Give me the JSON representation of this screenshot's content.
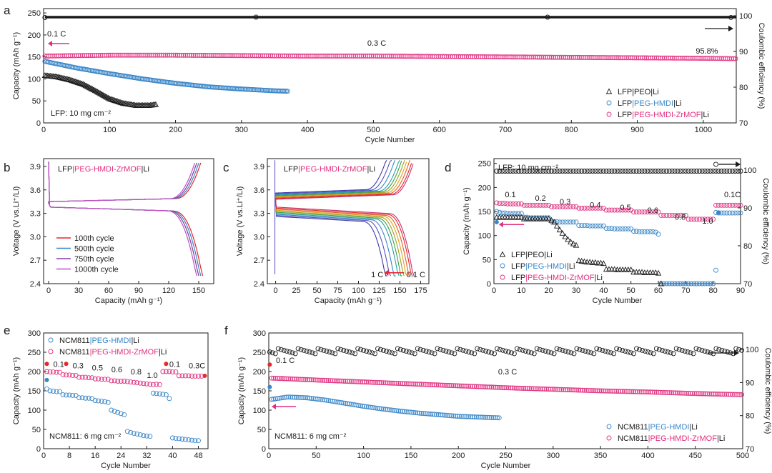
{
  "colors": {
    "black": "#1a1a1a",
    "blue": "#3a86c8",
    "magenta": "#e0307f",
    "red": "#e8262b",
    "pink": "#e0307f"
  },
  "chart_data": [
    {
      "id": "a",
      "type": "scatter",
      "panel_label": "a",
      "xlabel": "Cycle Number",
      "ylabel": "Capacity (mAh g⁻¹)",
      "y2label": "Coulombic efficiency (%)",
      "xlim": [
        0,
        1050
      ],
      "ylim": [
        0,
        260
      ],
      "y2lim": [
        70,
        102
      ],
      "xticks": [
        0,
        100,
        200,
        300,
        400,
        500,
        600,
        700,
        800,
        900,
        1000
      ],
      "yticks": [
        0,
        50,
        100,
        150,
        200,
        250
      ],
      "y2ticks": [
        70,
        80,
        90,
        100
      ],
      "annotations": [
        "0.1 C",
        "0.3 C",
        "95.8%",
        "LFP: 10 mg cm⁻²"
      ],
      "legend": [
        "LFP|PEO|Li",
        "LFP|PEG-HMDI|Li",
        "LFP|PEG-HMDI-ZrMOF|Li"
      ],
      "series": [
        {
          "name": "LFP|PEO|Li",
          "kind": "capacity",
          "color": "black",
          "x": [
            2,
            20,
            40,
            60,
            80,
            100,
            120,
            140,
            160,
            170
          ],
          "y": [
            108,
            105,
            98,
            88,
            72,
            55,
            45,
            40,
            40,
            42
          ]
        },
        {
          "name": "LFP|PEG-HMDI|Li",
          "kind": "capacity",
          "color": "blue",
          "x": [
            2,
            50,
            100,
            150,
            200,
            250,
            300,
            350,
            370
          ],
          "y": [
            140,
            125,
            112,
            100,
            90,
            82,
            77,
            73,
            72
          ]
        },
        {
          "name": "LFP|PEG-HMDI-ZrMOF|Li",
          "kind": "capacity",
          "color": "magenta",
          "x": [
            2,
            100,
            200,
            300,
            400,
            500,
            600,
            700,
            800,
            900,
            1000,
            1050
          ],
          "y": [
            152,
            154,
            154,
            153,
            152,
            152,
            151,
            150,
            149,
            148,
            147,
            146
          ]
        },
        {
          "name": "Coulombic efficiency",
          "kind": "efficiency",
          "color": "black",
          "x": [
            2,
            200,
            400,
            600,
            800,
            1000,
            1050
          ],
          "y": [
            99.5,
            99.6,
            99.6,
            99.6,
            99.6,
            99.6,
            99.5
          ]
        }
      ]
    },
    {
      "id": "b",
      "type": "line",
      "panel_label": "b",
      "title": "LFP|PEG-HMDI-ZrMOF|Li",
      "xlabel": "Capacity (mAh g⁻¹)",
      "ylabel": "Voltage (V vs.Li⁺/Li)",
      "xlim": [
        -5,
        165
      ],
      "ylim": [
        2.4,
        4.0
      ],
      "xticks": [
        0,
        30,
        60,
        90,
        120,
        150
      ],
      "yticks": [
        2.4,
        2.7,
        3.0,
        3.3,
        3.6,
        3.9
      ],
      "legend": [
        "100th cycle",
        "500th cycle",
        "750th cycle",
        "1000th cycle"
      ],
      "series": [
        {
          "name": "100th cycle",
          "color": "#e8262b",
          "charge_end": 152,
          "discharge_end": 154
        },
        {
          "name": "500th cycle",
          "color": "#3a86c8",
          "charge_end": 150,
          "discharge_end": 152
        },
        {
          "name": "750th cycle",
          "color": "#7b3fa0",
          "charge_end": 148,
          "discharge_end": 150
        },
        {
          "name": "1000th cycle",
          "color": "#c04fc7",
          "charge_end": 146,
          "discharge_end": 148
        }
      ]
    },
    {
      "id": "c",
      "type": "line",
      "panel_label": "c",
      "title": "LFP|PEG-HMDI-ZrMOF|Li",
      "xlabel": "Capacity (mAh g⁻¹)",
      "ylabel": "Voltage (V vs.Li⁺/Li)",
      "xlim": [
        -10,
        185
      ],
      "ylim": [
        2.4,
        4.0
      ],
      "xticks": [
        0,
        25,
        50,
        75,
        100,
        125,
        150,
        175
      ],
      "yticks": [
        2.4,
        2.7,
        3.0,
        3.3,
        3.6,
        3.9
      ],
      "annotations": [
        "1 C",
        "0.1 C"
      ],
      "capacity_ends": [
        135,
        140,
        145,
        150,
        153,
        156,
        159,
        162,
        165,
        167
      ],
      "colors": [
        "#3a3aa8",
        "#5a4fc0",
        "#3a86c8",
        "#2aa0a0",
        "#3aa04a",
        "#a0a020",
        "#e0a020",
        "#e06020",
        "#e8262b",
        "#c03070"
      ]
    },
    {
      "id": "d",
      "type": "scatter",
      "panel_label": "d",
      "xlabel": "Cycle Number",
      "ylabel": "Capacity (mAh g⁻¹)",
      "y2label": "Coulombic efficiency (%)",
      "xlim": [
        0,
        90
      ],
      "ylim": [
        0,
        260
      ],
      "y2lim": [
        70,
        103
      ],
      "xticks": [
        0,
        10,
        20,
        30,
        40,
        50,
        60,
        70,
        80,
        90
      ],
      "yticks": [
        0,
        50,
        100,
        150,
        200,
        250
      ],
      "y2ticks": [
        70,
        80,
        90,
        100
      ],
      "annotations": [
        "LFP: 10 mg cm⁻²",
        "0.1",
        "0.2",
        "0.3",
        "0.4",
        "0.5",
        "0.6",
        "0.8",
        "1.0",
        "0.1C"
      ],
      "legend": [
        "LFP|PEO|Li",
        "LFP|PEG-HMDI|Li",
        "LFP|PEG-HMDI-ZrMOF|Li"
      ],
      "series": [
        {
          "name": "LFP|PEG-HMDI-ZrMOF|Li",
          "color": "magenta",
          "y": [
            168,
            167,
            167,
            167,
            166,
            166,
            166,
            166,
            166,
            166,
            163,
            163,
            163,
            163,
            163,
            163,
            163,
            163,
            163,
            163,
            160,
            160,
            160,
            160,
            160,
            160,
            160,
            160,
            160,
            160,
            157,
            157,
            157,
            157,
            157,
            157,
            157,
            157,
            157,
            157,
            153,
            153,
            153,
            153,
            153,
            153,
            153,
            153,
            153,
            153,
            149,
            149,
            149,
            149,
            149,
            149,
            149,
            149,
            149,
            149,
            142,
            142,
            142,
            142,
            142,
            142,
            142,
            142,
            142,
            142,
            134,
            134,
            134,
            134,
            134,
            134,
            134,
            134,
            134,
            134,
            163,
            163,
            163,
            163,
            163,
            163,
            163,
            163,
            163,
            163
          ]
        },
        {
          "name": "LFP|PEG-HMDI|Li",
          "color": "blue",
          "y": [
            150,
            148,
            147,
            147,
            146,
            146,
            146,
            146,
            146,
            146,
            138,
            138,
            137,
            137,
            137,
            137,
            137,
            137,
            137,
            137,
            129,
            129,
            129,
            128,
            128,
            128,
            128,
            128,
            128,
            128,
            121,
            121,
            121,
            121,
            120,
            120,
            120,
            120,
            120,
            120,
            115,
            115,
            115,
            114,
            114,
            114,
            114,
            114,
            114,
            114,
            109,
            109,
            108,
            108,
            108,
            108,
            108,
            108,
            107,
            103,
            0,
            0,
            0,
            0,
            0,
            0,
            0,
            0,
            0,
            0,
            0,
            0,
            0,
            0,
            0,
            0,
            0,
            0,
            0,
            0,
            148,
            147,
            147,
            147,
            147,
            147,
            147,
            147,
            147,
            147
          ]
        },
        {
          "name": "LFP|PEO|Li",
          "color": "black",
          "y": [
            138,
            138,
            138,
            138,
            138,
            138,
            138,
            138,
            138,
            138,
            135,
            135,
            135,
            135,
            135,
            135,
            135,
            135,
            135,
            135,
            132,
            128,
            120,
            112,
            105,
            98,
            92,
            87,
            83,
            80,
            48,
            47,
            46,
            45,
            45,
            44,
            44,
            43,
            43,
            42,
            30,
            30,
            30,
            30,
            29,
            29,
            29,
            29,
            29,
            29,
            24,
            24,
            24,
            24,
            23,
            23,
            23,
            23,
            23,
            22,
            0,
            0,
            0,
            0,
            0,
            0,
            0,
            0,
            0,
            0,
            0,
            0,
            0,
            0,
            0,
            0,
            0,
            0,
            0,
            0,
            0,
            0,
            0,
            0,
            0,
            0,
            0,
            0,
            0,
            0
          ]
        },
        {
          "name": "Coulombic efficiency",
          "kind": "efficiency",
          "color": "black",
          "y": 99.7
        }
      ]
    },
    {
      "id": "e",
      "type": "scatter",
      "panel_label": "e",
      "xlabel": "Cycle Number",
      "ylabel": "Capacity (mAh g⁻¹)",
      "xlim": [
        0,
        51
      ],
      "ylim": [
        0,
        300
      ],
      "xticks": [
        0,
        8,
        16,
        24,
        32,
        40,
        48
      ],
      "yticks": [
        0,
        50,
        100,
        150,
        200,
        250,
        300
      ],
      "annotations": [
        "0.1",
        "0.3",
        "0.5",
        "0.6",
        "0.8",
        "1.0",
        "0.1",
        "0.3C",
        "NCM811: 6 mg cm⁻²"
      ],
      "legend": [
        "NCM811|PEG-HMDI|Li",
        "NCM811|PEG-HMDI-ZrMOF|Li"
      ],
      "series": [
        {
          "name": "NCM811|PEG-HMDI-ZrMOF|Li",
          "color": "magenta",
          "y": [
            200,
            199,
            199,
            198,
            198,
            192,
            191,
            191,
            190,
            190,
            185,
            185,
            185,
            184,
            184,
            181,
            181,
            180,
            180,
            180,
            176,
            176,
            175,
            175,
            175,
            174,
            173,
            172,
            171,
            170,
            169,
            168,
            167,
            166,
            167,
            166,
            200,
            200,
            200,
            199,
            199,
            189,
            189,
            189,
            189,
            188,
            188,
            188,
            188
          ]
        },
        {
          "name": "NCM811|PEG-HMDI|Li",
          "color": "blue",
          "y": [
            155,
            150,
            149,
            148,
            148,
            140,
            139,
            139,
            138,
            138,
            132,
            132,
            131,
            131,
            130,
            125,
            124,
            123,
            122,
            120,
            100,
            97,
            94,
            91,
            88,
            45,
            42,
            40,
            38,
            36,
            34,
            33,
            32,
            144,
            143,
            142,
            141,
            140,
            130,
            28,
            27,
            26,
            25,
            24,
            23,
            22,
            21,
            21
          ]
        }
      ]
    },
    {
      "id": "f",
      "type": "scatter",
      "panel_label": "f",
      "xlabel": "Cycle Number",
      "ylabel": "Capacity (mAh g⁻¹)",
      "y2label": "Coulombic efficiency (%)",
      "xlim": [
        0,
        500
      ],
      "ylim": [
        0,
        300
      ],
      "y2lim": [
        70,
        105
      ],
      "xticks": [
        0,
        50,
        100,
        150,
        200,
        250,
        300,
        350,
        400,
        450,
        500
      ],
      "yticks": [
        0,
        50,
        100,
        150,
        200,
        250,
        300
      ],
      "y2ticks": [
        70,
        80,
        90,
        100
      ],
      "annotations": [
        "0.1 C",
        "0.3 C",
        "NCM811: 6 mg cm⁻²"
      ],
      "legend": [
        "NCM811|PEG-HMDI|Li",
        "NCM811|PEG-HMDI-ZrMOF|Li"
      ],
      "series": [
        {
          "name": "NCM811|PEG-HMDI-ZrMOF|Li",
          "color": "magenta",
          "x": [
            3,
            50,
            100,
            150,
            200,
            250,
            300,
            350,
            400,
            450,
            500
          ],
          "y": [
            183,
            178,
            173,
            168,
            163,
            158,
            154,
            150,
            147,
            143,
            140
          ]
        },
        {
          "name": "NCM811|PEG-HMDI|Li",
          "color": "blue",
          "x": [
            3,
            20,
            40,
            60,
            80,
            100,
            120,
            140,
            160,
            180,
            200,
            220,
            243
          ],
          "y": [
            128,
            134,
            132,
            126,
            118,
            110,
            103,
            97,
            92,
            88,
            84,
            82,
            80
          ]
        },
        {
          "name": "Coulombic efficiency",
          "kind": "efficiency",
          "color": "black",
          "y": 99.5
        }
      ]
    }
  ]
}
